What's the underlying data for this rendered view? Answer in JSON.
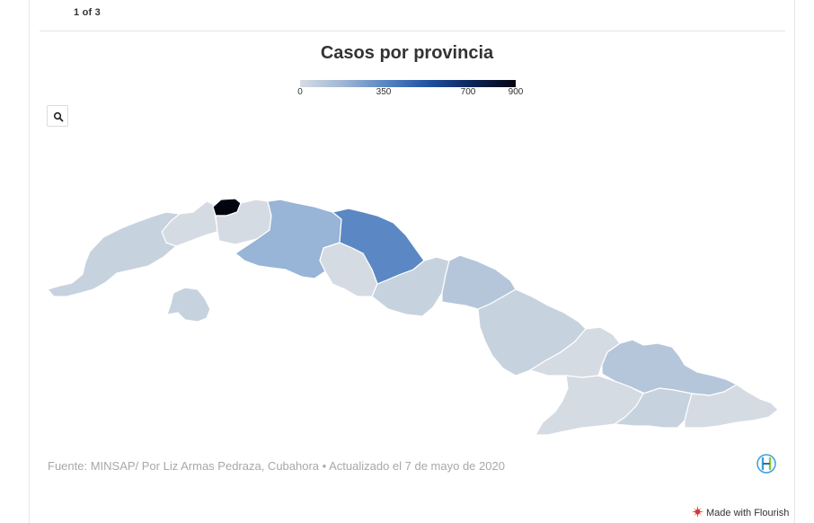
{
  "pager": {
    "label": "1 of 3"
  },
  "map": {
    "title": "Casos por provincia",
    "legend": {
      "ticks": [
        "0",
        "350",
        "700",
        "900"
      ],
      "min": 0,
      "max": 900,
      "colors": [
        "#d6dce3",
        "#9fb6d4",
        "#5a88c4",
        "#1f4fa0",
        "#0c2458",
        "#02050f"
      ]
    },
    "region_colors": {
      "low": "#d5dbe2",
      "light": "#c7d2df",
      "mid_light": "#b5c6db",
      "mid": "#98b4d6",
      "mid_strong": "#5b88c4",
      "max": "#02050f"
    }
  },
  "search": {
    "icon": "search-icon"
  },
  "footer": {
    "source": "Fuente: MINSAP/ Por Liz Armas Pedraza, Cubahora • Actualizado el 7 de mayo de 2020",
    "credit": "Made with Flourish"
  }
}
